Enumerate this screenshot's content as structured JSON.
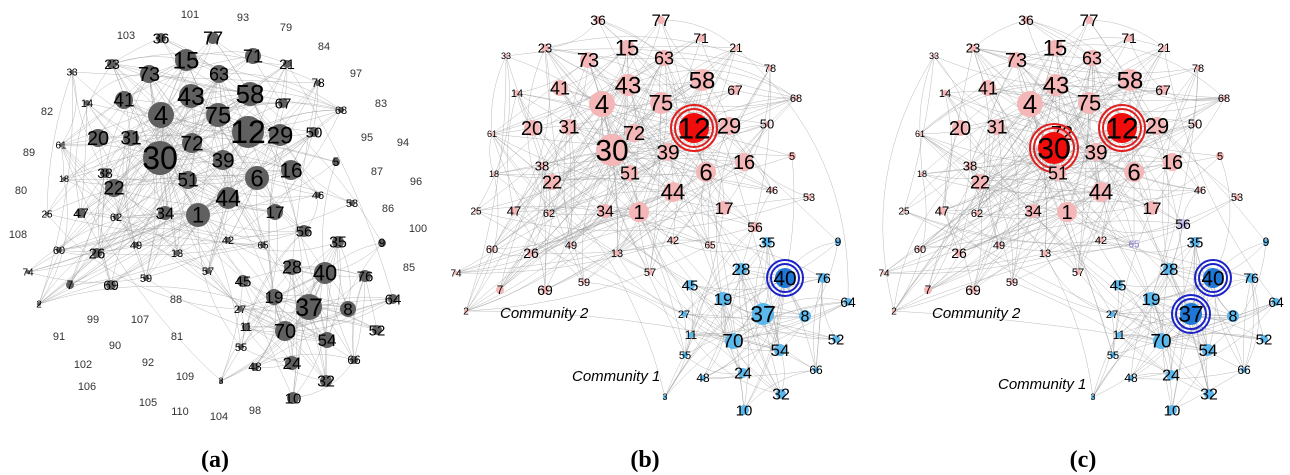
{
  "panels": [
    {
      "id": "a",
      "caption": "(a)",
      "mode": "gray"
    },
    {
      "id": "b",
      "caption": "(b)",
      "mode": "community",
      "community_labels": [
        "Community 2",
        "Community 1"
      ],
      "highlight": [
        "12",
        "40"
      ]
    },
    {
      "id": "c",
      "caption": "(c)",
      "mode": "community",
      "community_labels": [
        "Community 2",
        "Community 1"
      ],
      "highlight": [
        "12",
        "30",
        "40",
        "37"
      ]
    }
  ],
  "colors": {
    "gray_node": "#606060",
    "community_2": "#f4b6b6",
    "community_2_highlight": "#f20d0d",
    "community_1": "#5bb8ec",
    "community_1_highlight": "#1f77d8",
    "ring_community_2": "#e02020",
    "ring_community_1": "#1a23c8",
    "node_56_in_c": "#c7c2ee",
    "node_65_in_c": "#8a7fd0"
  },
  "nodes": [
    {
      "id": "36",
      "community": 2
    },
    {
      "id": "77",
      "community": 2
    },
    {
      "id": "23",
      "community": 2
    },
    {
      "id": "73",
      "community": 2
    },
    {
      "id": "15",
      "community": 2
    },
    {
      "id": "63",
      "community": 2
    },
    {
      "id": "71",
      "community": 2
    },
    {
      "id": "21",
      "community": 2
    },
    {
      "id": "33",
      "community": 2
    },
    {
      "id": "78",
      "community": 2
    },
    {
      "id": "14",
      "community": 2
    },
    {
      "id": "41",
      "community": 2
    },
    {
      "id": "43",
      "community": 2
    },
    {
      "id": "58",
      "community": 2
    },
    {
      "id": "67",
      "community": 2
    },
    {
      "id": "68",
      "community": 2
    },
    {
      "id": "4",
      "community": 2
    },
    {
      "id": "75",
      "community": 2
    },
    {
      "id": "12",
      "community": 2
    },
    {
      "id": "29",
      "community": 2
    },
    {
      "id": "50",
      "community": 2
    },
    {
      "id": "61",
      "community": 2
    },
    {
      "id": "20",
      "community": 2
    },
    {
      "id": "31",
      "community": 2
    },
    {
      "id": "72",
      "community": 2
    },
    {
      "id": "30",
      "community": 2
    },
    {
      "id": "39",
      "community": 2
    },
    {
      "id": "5",
      "community": 2
    },
    {
      "id": "16",
      "community": 2
    },
    {
      "id": "18",
      "community": 2
    },
    {
      "id": "38",
      "community": 2
    },
    {
      "id": "6",
      "community": 2
    },
    {
      "id": "46",
      "community": 2
    },
    {
      "id": "22",
      "community": 2
    },
    {
      "id": "51",
      "community": 2
    },
    {
      "id": "44",
      "community": 2
    },
    {
      "id": "53",
      "community": 2
    },
    {
      "id": "25",
      "community": 2
    },
    {
      "id": "47",
      "community": 2
    },
    {
      "id": "62",
      "community": 2
    },
    {
      "id": "34",
      "community": 2
    },
    {
      "id": "1",
      "community": 2
    },
    {
      "id": "17",
      "community": 2
    },
    {
      "id": "60",
      "community": 2
    },
    {
      "id": "26",
      "community": 2
    },
    {
      "id": "49",
      "community": 2
    },
    {
      "id": "13",
      "community": 2
    },
    {
      "id": "42",
      "community": 2
    },
    {
      "id": "65",
      "community": 2
    },
    {
      "id": "56",
      "community": 2
    },
    {
      "id": "74",
      "community": 2
    },
    {
      "id": "7",
      "community": 2
    },
    {
      "id": "69",
      "community": 2
    },
    {
      "id": "59",
      "community": 2
    },
    {
      "id": "57",
      "community": 2
    },
    {
      "id": "2",
      "community": 2
    },
    {
      "id": "35",
      "community": 1
    },
    {
      "id": "9",
      "community": 1
    },
    {
      "id": "28",
      "community": 1
    },
    {
      "id": "40",
      "community": 1
    },
    {
      "id": "76",
      "community": 1
    },
    {
      "id": "45",
      "community": 1
    },
    {
      "id": "19",
      "community": 1
    },
    {
      "id": "64",
      "community": 1
    },
    {
      "id": "37",
      "community": 1
    },
    {
      "id": "8",
      "community": 1
    },
    {
      "id": "27",
      "community": 1
    },
    {
      "id": "11",
      "community": 1
    },
    {
      "id": "70",
      "community": 1
    },
    {
      "id": "54",
      "community": 1
    },
    {
      "id": "52",
      "community": 1
    },
    {
      "id": "55",
      "community": 1
    },
    {
      "id": "48",
      "community": 1
    },
    {
      "id": "24",
      "community": 1
    },
    {
      "id": "66",
      "community": 1
    },
    {
      "id": "3",
      "community": 1
    },
    {
      "id": "32",
      "community": 1
    },
    {
      "id": "10",
      "community": 1
    }
  ],
  "isolated_nodes_panel_a": [
    "101",
    "93",
    "79",
    "103",
    "84",
    "97",
    "82",
    "83",
    "95",
    "94",
    "89",
    "87",
    "96",
    "80",
    "86",
    "100",
    "108",
    "85",
    "88",
    "99",
    "107",
    "91",
    "90",
    "81",
    "102",
    "92",
    "109",
    "106",
    "105",
    "110",
    "104",
    "98"
  ]
}
